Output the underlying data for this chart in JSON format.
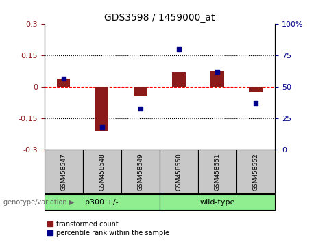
{
  "title": "GDS3598 / 1459000_at",
  "samples": [
    "GSM458547",
    "GSM458548",
    "GSM458549",
    "GSM458550",
    "GSM458551",
    "GSM458552"
  ],
  "red_values": [
    0.04,
    -0.21,
    -0.045,
    0.07,
    0.075,
    -0.025
  ],
  "blue_values_pct": [
    57,
    18,
    33,
    80,
    62,
    37
  ],
  "ylim": [
    -0.3,
    0.3
  ],
  "yticks_left": [
    -0.3,
    -0.15,
    0,
    0.15,
    0.3
  ],
  "red_color": "#8B1A1A",
  "blue_color": "#00008B",
  "bar_width": 0.35,
  "dot_size": 25,
  "group_label": "genotype/variation",
  "legend_red": "transformed count",
  "legend_blue": "percentile rank within the sample",
  "background_color": "#ffffff",
  "group_color": "#90EE90",
  "gray_color": "#c8c8c8",
  "grid_color": "#000000",
  "zero_line_color": "#ff0000",
  "group1_label": "p300 +/-",
  "group2_label": "wild-type"
}
